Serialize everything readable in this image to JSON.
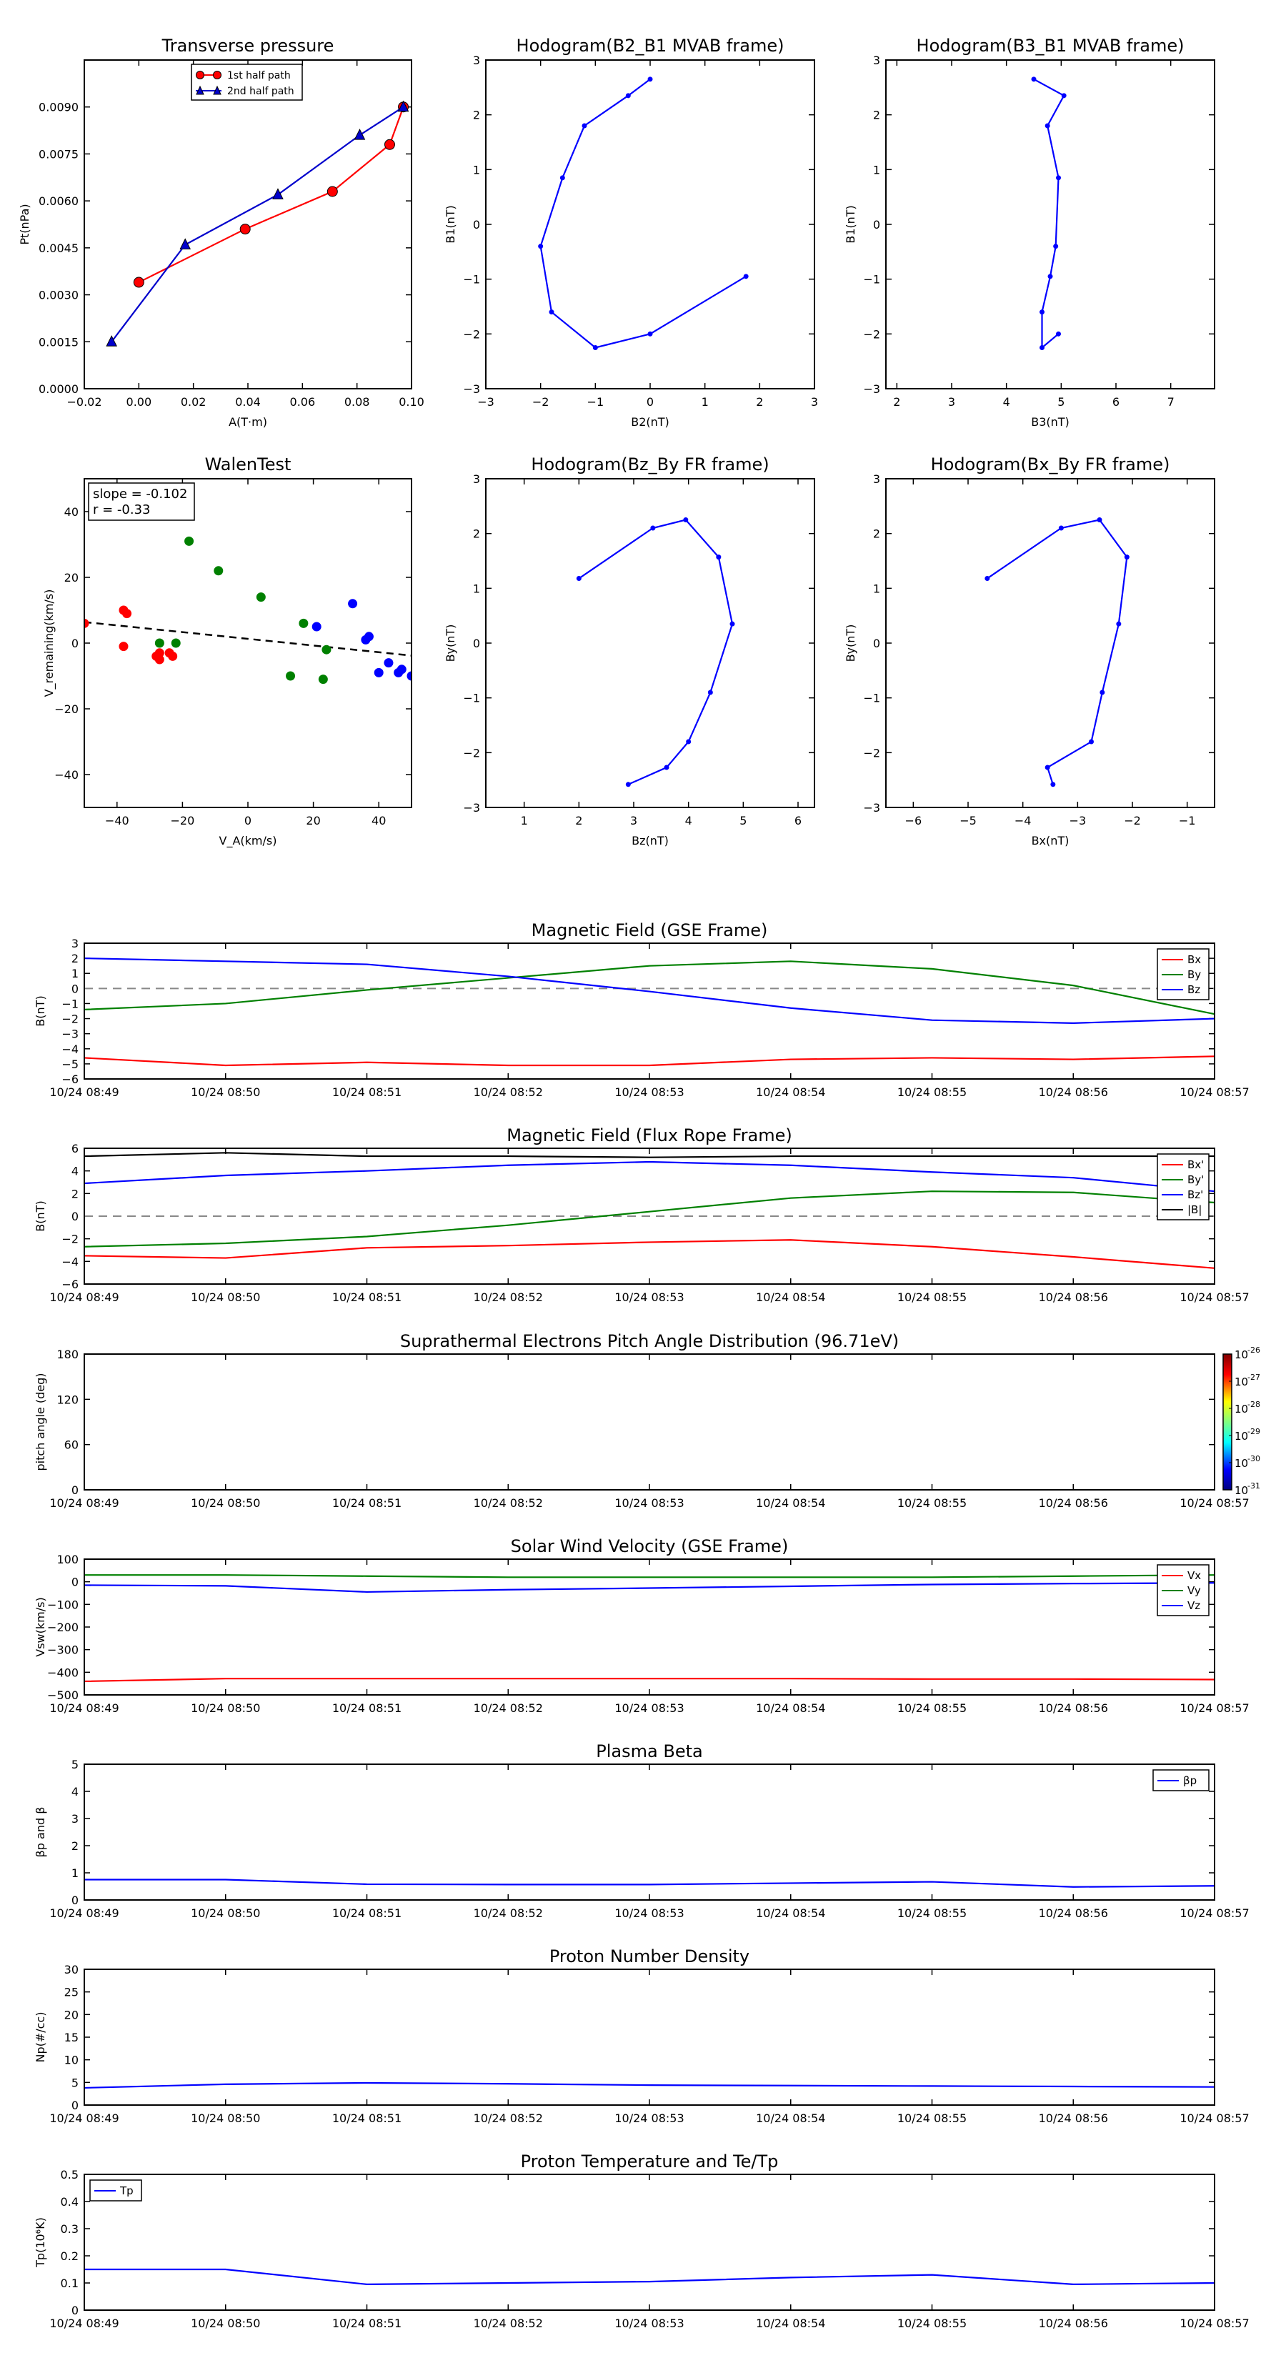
{
  "colors": {
    "red": "#ff0000",
    "green": "#008000",
    "blue": "#0000ff",
    "black": "#000000",
    "dash": "#888888"
  },
  "time_ticks": [
    "10/24 08:49",
    "10/24 08:50",
    "10/24 08:51",
    "10/24 08:52",
    "10/24 08:53",
    "10/24 08:54",
    "10/24 08:55",
    "10/24 08:56",
    "10/24 08:57"
  ],
  "chart_data": [
    {
      "id": "tp",
      "type": "line",
      "title": "Transverse pressure",
      "xlabel": "A(T·m)",
      "ylabel": "Pt(nPa)",
      "xlim": [
        -0.02,
        0.1
      ],
      "ylim": [
        0,
        0.0105
      ],
      "xticks": [
        -0.02,
        0.0,
        0.02,
        0.04,
        0.06,
        0.08,
        0.1
      ],
      "xtick_labels": [
        "−0.02",
        "0.00",
        "0.02",
        "0.04",
        "0.06",
        "0.08",
        "0.10"
      ],
      "yticks": [
        0,
        0.0015,
        0.003,
        0.0045,
        0.006,
        0.0075,
        0.009
      ],
      "ytick_labels": [
        "0.0000",
        "0.0015",
        "0.0030",
        "0.0045",
        "0.0060",
        "0.0075",
        "0.0090"
      ],
      "legend_position": "top-center",
      "series": [
        {
          "name": "1st half path",
          "color": "#ff0000",
          "marker": "circle",
          "x": [
            0.0,
            0.039,
            0.071,
            0.092,
            0.097
          ],
          "y": [
            0.0034,
            0.0051,
            0.0063,
            0.0078,
            0.009
          ]
        },
        {
          "name": "2nd half path",
          "color": "#0000cc",
          "marker": "triangle",
          "x": [
            -0.01,
            0.017,
            0.051,
            0.081,
            0.097
          ],
          "y": [
            0.0015,
            0.0046,
            0.0062,
            0.0081,
            0.009
          ]
        }
      ]
    },
    {
      "id": "h1",
      "type": "line",
      "title": "Hodogram(B2_B1 MVAB frame)",
      "xlabel": "B2(nT)",
      "ylabel": "B1(nT)",
      "xlim": [
        -3,
        3
      ],
      "ylim": [
        -3,
        3
      ],
      "xticks": [
        -3,
        -2,
        -1,
        0,
        1,
        2,
        3
      ],
      "yticks": [
        -3,
        -2,
        -1,
        0,
        1,
        2,
        3
      ],
      "series": [
        {
          "color": "#0000ff",
          "marker": "dot",
          "x": [
            0.0,
            -0.4,
            -1.2,
            -1.6,
            -2.0,
            -1.8,
            -1.0,
            0.0,
            1.75
          ],
          "y": [
            2.65,
            2.35,
            1.8,
            0.85,
            -0.4,
            -1.6,
            -2.25,
            -2.0,
            -0.95
          ]
        }
      ]
    },
    {
      "id": "h2",
      "type": "line",
      "title": "Hodogram(B3_B1 MVAB frame)",
      "xlabel": "B3(nT)",
      "ylabel": "B1(nT)",
      "xlim": [
        1.8,
        7.8
      ],
      "ylim": [
        -3,
        3
      ],
      "xticks": [
        2,
        3,
        4,
        5,
        6,
        7
      ],
      "yticks": [
        -3,
        -2,
        -1,
        0,
        1,
        2,
        3
      ],
      "series": [
        {
          "color": "#0000ff",
          "marker": "dot",
          "x": [
            4.5,
            5.05,
            4.75,
            4.95,
            4.9,
            4.8,
            4.65,
            4.65,
            4.95
          ],
          "y": [
            2.65,
            2.35,
            1.8,
            0.85,
            -0.4,
            -0.95,
            -1.6,
            -2.25,
            -2.0
          ]
        }
      ]
    },
    {
      "id": "walen",
      "type": "scatter",
      "title": "WalenTest",
      "xlabel": "V_A(km/s)",
      "ylabel": "V_remaining(km/s)",
      "xlim": [
        -50,
        50
      ],
      "ylim": [
        -50,
        50
      ],
      "xticks": [
        -40,
        -20,
        0,
        20,
        40
      ],
      "yticks": [
        -40,
        -20,
        0,
        20,
        40
      ],
      "annotation": [
        "slope = -0.102",
        "r = -0.33"
      ],
      "fit_line": {
        "x": [
          -50,
          50
        ],
        "y": [
          6.4,
          -3.8
        ]
      },
      "series": [
        {
          "color": "#ff0000",
          "x": [
            -38,
            -37,
            -38,
            -28,
            -27,
            -27,
            -24,
            -23,
            -50
          ],
          "y": [
            10,
            9,
            -1,
            -4,
            -5,
            -3,
            -3,
            -4,
            6
          ]
        },
        {
          "color": "#008000",
          "x": [
            -18,
            -9,
            4,
            17,
            24,
            13,
            23,
            -27,
            -22
          ],
          "y": [
            31,
            22,
            14,
            6,
            -2,
            -10,
            -11,
            0,
            0
          ]
        },
        {
          "color": "#0000ff",
          "x": [
            21,
            32,
            36,
            37,
            40,
            43,
            46,
            47,
            50
          ],
          "y": [
            5,
            12,
            1,
            2,
            -9,
            -6,
            -9,
            -8,
            -10
          ]
        }
      ]
    },
    {
      "id": "h3",
      "type": "line",
      "title": "Hodogram(Bz_By FR frame)",
      "xlabel": "Bz(nT)",
      "ylabel": "By(nT)",
      "xlim": [
        0.3,
        6.3
      ],
      "ylim": [
        -3,
        3
      ],
      "xticks": [
        1,
        2,
        3,
        4,
        5,
        6
      ],
      "yticks": [
        -3,
        -2,
        -1,
        0,
        1,
        2,
        3
      ],
      "series": [
        {
          "color": "#0000ff",
          "marker": "dot",
          "x": [
            2.0,
            3.35,
            3.95,
            4.55,
            4.8,
            4.4,
            4.0,
            3.6,
            2.9
          ],
          "y": [
            1.18,
            2.1,
            2.25,
            1.57,
            0.35,
            -0.9,
            -1.8,
            -2.27,
            -2.58
          ]
        }
      ]
    },
    {
      "id": "h4",
      "type": "line",
      "title": "Hodogram(Bx_By FR frame)",
      "xlabel": "Bx(nT)",
      "ylabel": "By(nT)",
      "xlim": [
        -6.5,
        -0.5
      ],
      "ylim": [
        -3,
        3
      ],
      "xticks": [
        -6,
        -5,
        -4,
        -3,
        -2,
        -1
      ],
      "yticks": [
        -3,
        -2,
        -1,
        0,
        1,
        2,
        3
      ],
      "series": [
        {
          "color": "#0000ff",
          "marker": "dot",
          "x": [
            -4.65,
            -3.3,
            -2.6,
            -2.1,
            -2.25,
            -2.55,
            -2.75,
            -3.55,
            -3.45
          ],
          "y": [
            1.18,
            2.1,
            2.25,
            1.57,
            0.35,
            -0.9,
            -1.8,
            -2.27,
            -2.58
          ]
        }
      ]
    },
    {
      "id": "ts1",
      "type": "line",
      "title": "Magnetic Field (GSE Frame)",
      "ylabel": "B(nT)",
      "ylim": [
        -6,
        3
      ],
      "yticks": [
        -6,
        -5,
        -4,
        -3,
        -2,
        -1,
        0,
        1,
        2,
        3
      ],
      "zero_dash": true,
      "legend_position": "top-right",
      "series": [
        {
          "name": "Bx",
          "color": "#ff0000",
          "values": [
            -4.6,
            -5.1,
            -4.9,
            -5.1,
            -5.1,
            -4.7,
            -4.6,
            -4.7,
            -4.5
          ]
        },
        {
          "name": "By",
          "color": "#008000",
          "values": [
            -1.4,
            -1.0,
            -0.1,
            0.7,
            1.5,
            1.8,
            1.3,
            0.2,
            -1.7
          ]
        },
        {
          "name": "Bz",
          "color": "#0000ff",
          "values": [
            2.0,
            1.8,
            1.6,
            0.8,
            -0.2,
            -1.3,
            -2.1,
            -2.3,
            -2.0
          ]
        }
      ]
    },
    {
      "id": "ts2",
      "type": "line",
      "title": "Magnetic Field (Flux Rope Frame)",
      "ylabel": "B(nT)",
      "ylim": [
        -6,
        6
      ],
      "yticks": [
        -6,
        -4,
        -2,
        0,
        2,
        4,
        6
      ],
      "zero_dash": true,
      "legend_position": "top-right",
      "series": [
        {
          "name": "Bx'",
          "color": "#ff0000",
          "values": [
            -3.5,
            -3.7,
            -2.8,
            -2.6,
            -2.3,
            -2.1,
            -2.7,
            -3.6,
            -4.6
          ]
        },
        {
          "name": "By'",
          "color": "#008000",
          "values": [
            -2.7,
            -2.4,
            -1.8,
            -0.8,
            0.4,
            1.6,
            2.2,
            2.1,
            1.2
          ]
        },
        {
          "name": "Bz'",
          "color": "#0000ff",
          "values": [
            2.9,
            3.6,
            4.0,
            4.5,
            4.8,
            4.5,
            3.9,
            3.4,
            2.2
          ]
        },
        {
          "name": "|B|",
          "color": "#000000",
          "values": [
            5.3,
            5.6,
            5.3,
            5.3,
            5.2,
            5.3,
            5.3,
            5.3,
            5.3
          ]
        }
      ]
    },
    {
      "id": "ts3",
      "type": "heatmap",
      "title": "Suprathermal Electrons Pitch Angle Distribution (96.71eV)",
      "ylabel": "pitch angle (deg)",
      "ylim": [
        0,
        180
      ],
      "yticks": [
        0,
        60,
        120,
        180
      ],
      "colorbar_labels": [
        "10",
        "-26",
        "10",
        "-27",
        "10",
        "-28",
        "10",
        "-29",
        "10",
        "-30",
        "10",
        "-31"
      ]
    },
    {
      "id": "ts4",
      "type": "line",
      "title": "Solar Wind Velocity (GSE Frame)",
      "ylabel": "Vsw(km/s)",
      "ylim": [
        -500,
        100
      ],
      "yticks": [
        -500,
        -400,
        -300,
        -200,
        -100,
        0,
        100
      ],
      "legend_position": "top-right",
      "series": [
        {
          "name": "Vx",
          "color": "#ff0000",
          "values": [
            -440,
            -428,
            -428,
            -428,
            -428,
            -428,
            -430,
            -430,
            -432
          ]
        },
        {
          "name": "Vy",
          "color": "#008000",
          "values": [
            30,
            30,
            25,
            20,
            20,
            20,
            20,
            25,
            30
          ]
        },
        {
          "name": "Vz",
          "color": "#0000ff",
          "values": [
            -15,
            -18,
            -45,
            -35,
            -28,
            -20,
            -12,
            -8,
            -5
          ]
        }
      ]
    },
    {
      "id": "ts5",
      "type": "line",
      "title": "Plasma Beta",
      "ylabel": "βp and β",
      "ylim": [
        0,
        5
      ],
      "yticks": [
        0,
        1,
        2,
        3,
        4,
        5
      ],
      "legend_position": "top-right",
      "series": [
        {
          "name": "βp",
          "color": "#0000ff",
          "values": [
            0.75,
            0.75,
            0.58,
            0.57,
            0.57,
            0.62,
            0.67,
            0.48,
            0.52
          ]
        }
      ]
    },
    {
      "id": "ts6",
      "type": "line",
      "title": "Proton Number Density",
      "ylabel": "Np(#/cc)",
      "ylim": [
        0,
        30
      ],
      "yticks": [
        0,
        5,
        10,
        15,
        20,
        25,
        30
      ],
      "series": [
        {
          "color": "#0000ff",
          "values": [
            3.8,
            4.6,
            4.9,
            4.7,
            4.4,
            4.3,
            4.2,
            4.1,
            4.0
          ]
        }
      ]
    },
    {
      "id": "ts7",
      "type": "line",
      "title": "Proton Temperature and Te/Tp",
      "ylabel": "Tp(10⁶K)",
      "ylim": [
        0,
        0.5
      ],
      "yticks": [
        0,
        0.1,
        0.2,
        0.3,
        0.4,
        0.5
      ],
      "legend_position": "top-left",
      "series": [
        {
          "name": "Tp",
          "color": "#0000ff",
          "values": [
            0.15,
            0.15,
            0.095,
            0.1,
            0.105,
            0.12,
            0.13,
            0.095,
            0.1
          ]
        }
      ]
    }
  ]
}
